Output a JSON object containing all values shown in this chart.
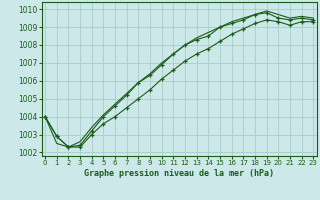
{
  "xlabel": "Graphe pression niveau de la mer (hPa)",
  "background_color": "#cce8e8",
  "grid_color": "#aacccc",
  "line_color": "#1a5c1a",
  "ylim": [
    1001.8,
    1010.4
  ],
  "xlim": [
    -0.3,
    23.3
  ],
  "yticks": [
    1002,
    1003,
    1004,
    1005,
    1006,
    1007,
    1008,
    1009,
    1010
  ],
  "xticks": [
    0,
    1,
    2,
    3,
    4,
    5,
    6,
    7,
    8,
    9,
    10,
    11,
    12,
    13,
    14,
    15,
    16,
    17,
    18,
    19,
    20,
    21,
    22,
    23
  ],
  "series1": [
    1004.0,
    1002.9,
    1002.3,
    1002.3,
    1003.0,
    1003.6,
    1004.0,
    1004.5,
    1005.0,
    1005.5,
    1006.1,
    1006.6,
    1007.1,
    1007.5,
    1007.8,
    1008.2,
    1008.6,
    1008.9,
    1009.2,
    1009.4,
    1009.3,
    1009.1,
    1009.3,
    1009.3
  ],
  "series2": [
    1004.0,
    1002.9,
    1002.3,
    1002.4,
    1003.2,
    1004.0,
    1004.6,
    1005.2,
    1005.9,
    1006.3,
    1006.9,
    1007.5,
    1008.0,
    1008.3,
    1008.5,
    1009.0,
    1009.2,
    1009.4,
    1009.7,
    1009.8,
    1009.5,
    1009.4,
    1009.5,
    1009.4
  ],
  "series3_straight": [
    1004.0,
    1002.5,
    1002.3,
    1002.6,
    1003.4,
    1004.1,
    1004.7,
    1005.3,
    1005.9,
    1006.4,
    1007.0,
    1007.5,
    1008.0,
    1008.4,
    1008.7,
    1009.0,
    1009.3,
    1009.5,
    1009.7,
    1009.9,
    1009.7,
    1009.5,
    1009.6,
    1009.5
  ]
}
